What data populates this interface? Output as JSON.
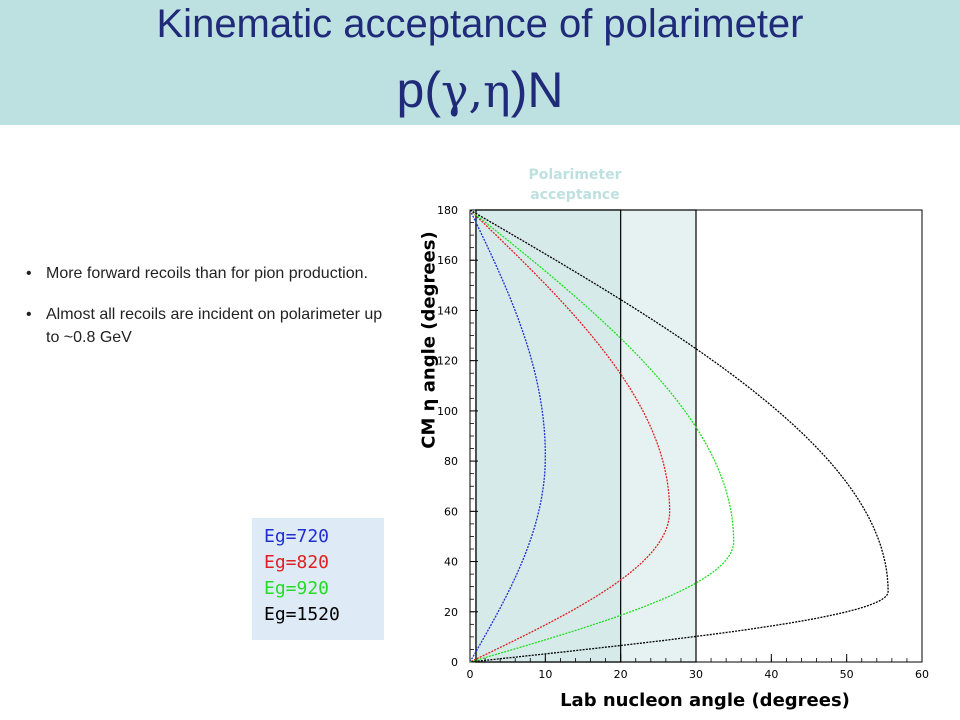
{
  "title": {
    "line1": "Kinematic acceptance of polarimeter",
    "line2_prefix": "p(",
    "line2_greek": "γ,η",
    "line2_suffix": ")N"
  },
  "bullets": [
    "More forward recoils than for pion production.",
    "Almost all recoils are incident on polarimeter up to ~0.8 GeV"
  ],
  "bullet_symbol": "•",
  "legend": [
    {
      "label": "Eg=720",
      "color": "#1f2fd0"
    },
    {
      "label": "Eg=820",
      "color": "#e02020"
    },
    {
      "label": "Eg=920",
      "color": "#22dd22"
    },
    {
      "label": "Eg=1520",
      "color": "#000000"
    }
  ],
  "acceptance_label": "Polarimeter acceptance",
  "colors": {
    "title_bar": "#bde0e1",
    "title_text": "#1f2a78",
    "acceptance_fill": "#c8e3e3",
    "legend_bg": "#deebf7"
  },
  "chart_data": {
    "type": "scatter",
    "xlabel": "Lab nucleon angle (degrees)",
    "ylabel": "CM η angle (degrees)",
    "xlim": [
      0,
      60
    ],
    "ylim": [
      0,
      180
    ],
    "xticks": [
      0,
      10,
      20,
      30,
      40,
      50,
      60
    ],
    "yticks": [
      0,
      20,
      40,
      60,
      80,
      100,
      120,
      140,
      160,
      180
    ],
    "acceptance_regions": [
      {
        "x": [
          0,
          20
        ],
        "y": [
          0,
          180
        ]
      },
      {
        "x": [
          0,
          30
        ],
        "y": [
          0,
          180
        ]
      }
    ],
    "series": [
      {
        "name": "Eg=720",
        "color": "#1f2fd0",
        "max_angle": 10,
        "peak_cm": 82
      },
      {
        "name": "Eg=820",
        "color": "#e02020",
        "max_angle": 26.5,
        "peak_cm": 60
      },
      {
        "name": "Eg=920",
        "color": "#22dd22",
        "max_angle": 35,
        "peak_cm": 48
      },
      {
        "name": "Eg=1520",
        "color": "#000000",
        "max_angle": 55.5,
        "peak_cm": 28
      }
    ]
  }
}
